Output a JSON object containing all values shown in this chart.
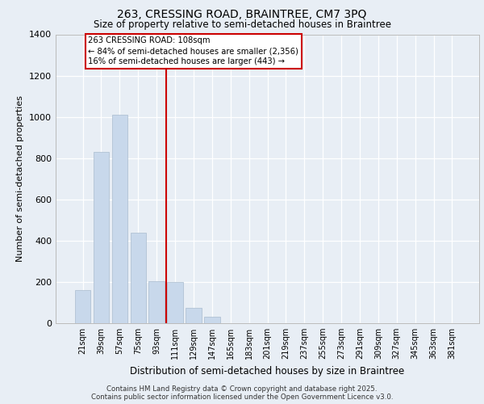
{
  "title_line1": "263, CRESSING ROAD, BRAINTREE, CM7 3PQ",
  "title_line2": "Size of property relative to semi-detached houses in Braintree",
  "xlabel": "Distribution of semi-detached houses by size in Braintree",
  "ylabel": "Number of semi-detached properties",
  "bar_labels": [
    "21sqm",
    "39sqm",
    "57sqm",
    "75sqm",
    "93sqm",
    "111sqm",
    "129sqm",
    "147sqm",
    "165sqm",
    "183sqm",
    "201sqm",
    "219sqm",
    "237sqm",
    "255sqm",
    "273sqm",
    "291sqm",
    "309sqm",
    "327sqm",
    "345sqm",
    "363sqm",
    "381sqm"
  ],
  "bar_values": [
    160,
    830,
    1010,
    440,
    205,
    200,
    75,
    30,
    0,
    0,
    0,
    0,
    0,
    0,
    0,
    0,
    0,
    0,
    0,
    0,
    0
  ],
  "bar_color": "#c8d8eb",
  "bar_edge_color": "#aabcce",
  "vline_color": "#cc0000",
  "annotation_title": "263 CRESSING ROAD: 108sqm",
  "annotation_line1": "← 84% of semi-detached houses are smaller (2,356)",
  "annotation_line2": "16% of semi-detached houses are larger (443) →",
  "annotation_box_color": "#cc0000",
  "ylim": [
    0,
    1400
  ],
  "yticks": [
    0,
    200,
    400,
    600,
    800,
    1000,
    1200,
    1400
  ],
  "footnote1": "Contains HM Land Registry data © Crown copyright and database right 2025.",
  "footnote2": "Contains public sector information licensed under the Open Government Licence v3.0.",
  "bg_color": "#e8eef5",
  "plot_bg_color": "#e8eef5"
}
